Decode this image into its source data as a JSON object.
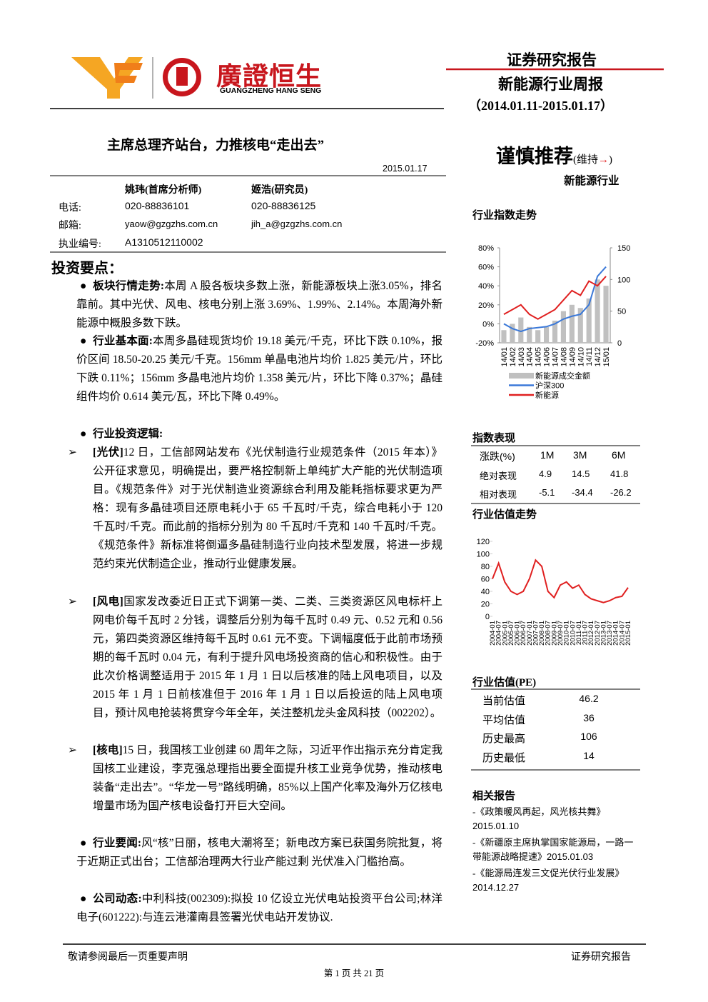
{
  "header": {
    "logo_cn": "廣證恒生",
    "logo_en": "GUANGZHENG HANG SENG",
    "report_kind": "证券研究报告",
    "report_name": "新能源行业周报",
    "period": "（2014.01.11-2015.01.17）"
  },
  "title": "主席总理齐站台，力推核电“走出去”",
  "date": "2015.01.17",
  "rating": {
    "text": "谨慎推荐",
    "status": "(维持",
    "arrow": "→",
    "close": ")",
    "industry": "新能源行业"
  },
  "analysts": {
    "headers": [
      "姚玮(首席分析师)",
      "姬浩(研究员)"
    ],
    "rows": [
      {
        "label": "电话:",
        "values": [
          "020-88836101",
          "020-88836125"
        ]
      },
      {
        "label": "邮箱:",
        "values": [
          "yaow@gzgzhs.com.cn",
          "jih_a@gzgzhs.com.cn"
        ]
      },
      {
        "label": "执业编号:",
        "values": [
          "A1310512110002"
        ]
      }
    ]
  },
  "section_title": "投资要点：",
  "points": [
    {
      "label": "板块行情走势:",
      "text": "本周 A 股各板块多数上涨，新能源板块上涨3.05%，排名靠前。其中光伏、风电、核电分别上涨 3.69%、1.99%、2.14%。本周海外新能源中概股多数下跌。"
    },
    {
      "label": "行业基本面:",
      "text": "本周多晶硅现货均价 19.18 美元/千克，环比下跌 0.10%，报价区间 18.50-20.25 美元/千克。156mm 单晶电池片均价 1.825 美元/片，环比下跌 0.11%；156mm 多晶电池片均价 1.358 美元/片，环比下降 0.37%；晶硅组件均价 0.614 美元/瓦，环比下降 0.49%。"
    },
    {
      "label": "行业投资逻辑:",
      "items": [
        {
          "tag": "[光伏]",
          "text": "12 日，工信部网站发布《光伏制造行业规范条件（2015 年本）》公开征求意见，明确提出，要严格控制新上单纯扩大产能的光伏制造项目。《规范条件》对于光伏制造业资源综合利用及能耗指标要求更为严格：现有多晶硅项目还原电耗小于 65 千瓦时/千克，综合电耗小于 120 千瓦时/千克。而此前的指标分别为 80 千瓦时/千克和 140 千瓦时/千克。《规范条件》新标准将倒逼多晶硅制造行业向技术型发展，将进一步规范约束光伏制造企业，推动行业健康发展。"
        },
        {
          "tag": "[风电]",
          "text": "国家发改委近日正式下调第一类、二类、三类资源区风电标杆上网电价每千瓦时 2 分钱，调整后分别为每千瓦时 0.49 元、0.52 元和 0.56 元，第四类资源区维持每千瓦时 0.61 元不变。下调幅度低于此前市场预期的每千瓦时 0.04 元，有利于提升风电场投资商的信心和积极性。由于此次价格调整适用于 2015 年 1 月 1 日以后核准的陆上风电项目，以及 2015 年 1 月 1 日前核准但于 2016 年 1 月 1 日以后投运的陆上风电项目，预计风电抢装将贯穿今年全年，关注整机龙头金风科技（002202）。"
        },
        {
          "tag": "[核电]",
          "text": "15 日，我国核工业创建 60 周年之际，习近平作出指示充分肯定我国核工业建设，李克强总理指出要全面提升核工业竞争优势，推动核电装备“走出去”。“华龙一号”路线明确，85%以上国产化率及海外万亿核电增量市场为国产核电设备打开巨大空间。"
        }
      ]
    },
    {
      "label": "行业要闻:",
      "text": "风“核”日丽，核电大潮将至；新电改方案已获国务院批复，将于近期正式出台；工信部治理两大行业产能过剩 光伏准入门槛抬高。"
    },
    {
      "label": "公司动态:",
      "text": "中利科技(002309):拟投 10 亿设立光伏电站投资平台公司;林洋电子(601222):与连云港灌南县签署光伏电站开发协议."
    }
  ],
  "sidebar": {
    "index_chart": {
      "type": "bar-line",
      "title": "行业指数走势",
      "categories": [
        "14/01",
        "14/02",
        "14/03",
        "14/04",
        "14/05",
        "14/06",
        "14/07",
        "14/08",
        "14/09",
        "14/10",
        "14/11",
        "14/12",
        "15/01"
      ],
      "series": [
        {
          "name": "新能源成交金额",
          "color": "#c0c0c0",
          "axis": "y2",
          "kind": "bar",
          "values": [
            20,
            30,
            40,
            25,
            20,
            25,
            35,
            50,
            60,
            55,
            70,
            100,
            90
          ]
        },
        {
          "name": "沪深300",
          "color": "#3a78d8",
          "kind": "line",
          "values": [
            0,
            -5,
            -8,
            -5,
            -4,
            -3,
            0,
            5,
            8,
            10,
            20,
            50,
            60
          ]
        },
        {
          "name": "新能源",
          "color": "#e02020",
          "kind": "line",
          "values": [
            10,
            15,
            20,
            10,
            5,
            10,
            15,
            25,
            35,
            30,
            45,
            40,
            50
          ]
        }
      ],
      "ylim": [
        -20,
        80
      ],
      "yticks": [
        {
          "value": -20,
          "label": "-20%"
        },
        {
          "value": 0,
          "label": "0%"
        },
        {
          "value": 20,
          "label": "20%"
        },
        {
          "value": 40,
          "label": "40%"
        },
        {
          "value": 60,
          "label": "60%"
        },
        {
          "value": 80,
          "label": "80%"
        }
      ],
      "y2lim": [
        0,
        150
      ],
      "y2ticks": [
        0,
        50,
        100,
        150
      ]
    },
    "performance": {
      "title": "指数表现",
      "headers": [
        "涨跌(%)",
        "1M",
        "3M",
        "6M"
      ],
      "rows": [
        {
          "label": "绝对表现",
          "values": [
            4.9,
            14.5,
            41.8
          ]
        },
        {
          "label": "相对表现",
          "values": [
            -5.1,
            -34.4,
            -26.2
          ]
        }
      ]
    },
    "pe_chart": {
      "type": "line",
      "title": "行业估值走势",
      "categories": [
        "2004-01",
        "2004-07",
        "2005-01",
        "2005-07",
        "2006-01",
        "2006-07",
        "2007-01",
        "2007-07",
        "2008-01",
        "2008-07",
        "2009-01",
        "2009-07",
        "2010-01",
        "2010-07",
        "2011-01",
        "2011-07",
        "2012-01",
        "2012-07",
        "2013-01",
        "2013-07",
        "2014-01",
        "2014-07",
        "2015-01"
      ],
      "color": "#e02020",
      "values": [
        60,
        85,
        55,
        40,
        35,
        40,
        60,
        90,
        80,
        40,
        30,
        50,
        55,
        45,
        50,
        35,
        28,
        25,
        22,
        25,
        30,
        32,
        46
      ],
      "ylim": [
        0,
        120
      ],
      "yticks": [
        0,
        20,
        40,
        60,
        80,
        100,
        120
      ]
    },
    "valuation": {
      "title": "行业估值(PE)",
      "rows": [
        {
          "label": "当前估值",
          "value": 46.2
        },
        {
          "label": "平均估值",
          "value": 36
        },
        {
          "label": "历史最高",
          "value": 106
        },
        {
          "label": "历史最低",
          "value": 14
        }
      ]
    },
    "related": {
      "title": "相关报告",
      "items": [
        {
          "title": "-《政策暖风再起，风光核共舞》",
          "date": "2015.01.10"
        },
        {
          "title": "-《新疆原主席执掌国家能源局，一路一带能源战略提速》",
          "date": "2015.01.03"
        },
        {
          "title": "-《能源局连发三文促光伏行业发展》",
          "date": "2014.12.27"
        }
      ]
    }
  },
  "footer": {
    "notice": "敬请参阅最后一页重要声明",
    "label": "证券研究报告",
    "page": "第 1 页 共 21 页"
  }
}
